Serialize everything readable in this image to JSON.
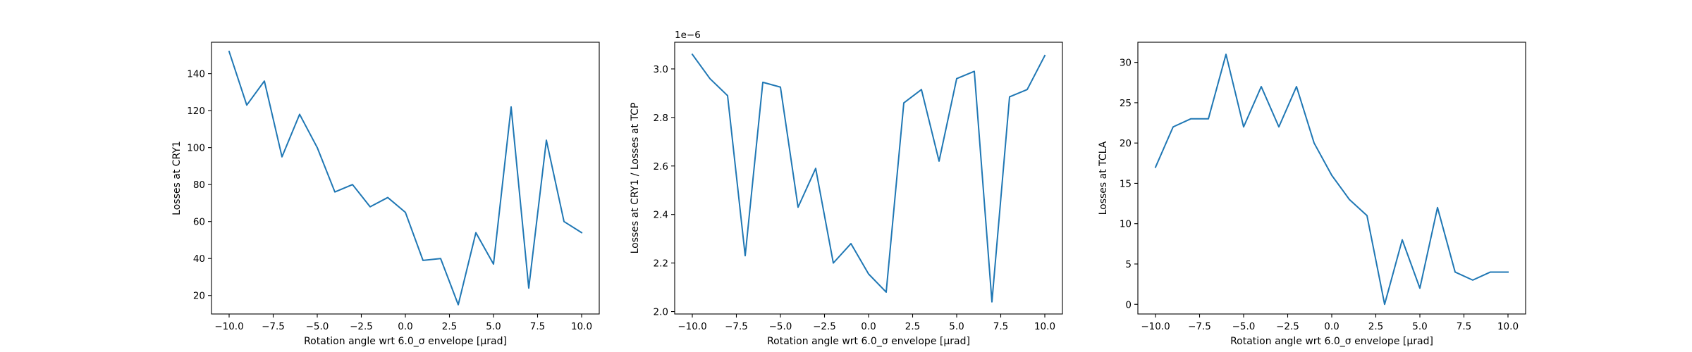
{
  "chart_data": [
    {
      "type": "line",
      "xlabel": "Rotation angle wrt 6.0_σ envelope [μrad]",
      "ylabel": "Losses at CRY1",
      "offset_text": "",
      "color": "#1f77b4",
      "xlim": [
        -11,
        11
      ],
      "ylim": [
        10,
        157
      ],
      "xticks": [
        -10.0,
        -7.5,
        -5.0,
        -2.5,
        0.0,
        2.5,
        5.0,
        7.5,
        10.0
      ],
      "xtick_labels": [
        "−10.0",
        "−7.5",
        "−5.0",
        "−2.5",
        "0.0",
        "2.5",
        "5.0",
        "7.5",
        "10.0"
      ],
      "yticks": [
        20,
        40,
        60,
        80,
        100,
        120,
        140
      ],
      "ytick_labels": [
        "20",
        "40",
        "60",
        "80",
        "100",
        "120",
        "140"
      ],
      "x": [
        -10,
        -9,
        -8,
        -7,
        -6,
        -5,
        -4,
        -3,
        -2,
        -1,
        0,
        1,
        2,
        3,
        4,
        5,
        6,
        7,
        8,
        9,
        10
      ],
      "y": [
        152,
        123,
        136,
        95,
        118,
        100,
        76,
        80,
        68,
        73,
        65,
        39,
        40,
        15,
        54,
        37,
        122,
        24,
        104,
        60,
        54
      ]
    },
    {
      "type": "line",
      "xlabel": "Rotation angle wrt 6.0_σ envelope [μrad]",
      "ylabel": "Losses at CRY1 / Losses at TCP",
      "offset_text": "1e−6",
      "color": "#1f77b4",
      "xlim": [
        -11,
        11
      ],
      "ylim": [
        1.99,
        3.11
      ],
      "xticks": [
        -10.0,
        -7.5,
        -5.0,
        -2.5,
        0.0,
        2.5,
        5.0,
        7.5,
        10.0
      ],
      "xtick_labels": [
        "−10.0",
        "−7.5",
        "−5.0",
        "−2.5",
        "0.0",
        "2.5",
        "5.0",
        "7.5",
        "10.0"
      ],
      "yticks": [
        2.0,
        2.2,
        2.4,
        2.6,
        2.8,
        3.0
      ],
      "ytick_labels": [
        "2.0",
        "2.2",
        "2.4",
        "2.6",
        "2.8",
        "3.0"
      ],
      "x": [
        -10,
        -9,
        -8,
        -7,
        -6,
        -5,
        -4,
        -3,
        -2,
        -1,
        0,
        1,
        2,
        3,
        4,
        5,
        6,
        7,
        8,
        9,
        10
      ],
      "y": [
        3.06,
        2.96,
        2.89,
        2.23,
        2.945,
        2.925,
        2.43,
        2.59,
        2.2,
        2.28,
        2.155,
        2.08,
        2.86,
        2.915,
        2.62,
        2.96,
        2.99,
        2.04,
        2.885,
        2.915,
        3.055
      ]
    },
    {
      "type": "line",
      "xlabel": "Rotation angle wrt 6.0_σ envelope [μrad]",
      "ylabel": "Losses at TCLA",
      "offset_text": "",
      "color": "#1f77b4",
      "xlim": [
        -11,
        11
      ],
      "ylim": [
        -1.2,
        32.5
      ],
      "xticks": [
        -10.0,
        -7.5,
        -5.0,
        -2.5,
        0.0,
        2.5,
        5.0,
        7.5,
        10.0
      ],
      "xtick_labels": [
        "−10.0",
        "−7.5",
        "−5.0",
        "−2.5",
        "0.0",
        "2.5",
        "5.0",
        "7.5",
        "10.0"
      ],
      "yticks": [
        0,
        5,
        10,
        15,
        20,
        25,
        30
      ],
      "ytick_labels": [
        "0",
        "5",
        "10",
        "15",
        "20",
        "25",
        "30"
      ],
      "x": [
        -10,
        -9,
        -8,
        -7,
        -6,
        -5,
        -4,
        -3,
        -2,
        -1,
        0,
        1,
        2,
        3,
        4,
        5,
        6,
        7,
        8,
        9,
        10
      ],
      "y": [
        17,
        22,
        23,
        23,
        31,
        22,
        27,
        22,
        27,
        20,
        16,
        13,
        11,
        0,
        8,
        2,
        12,
        4,
        3,
        4,
        4
      ]
    }
  ]
}
